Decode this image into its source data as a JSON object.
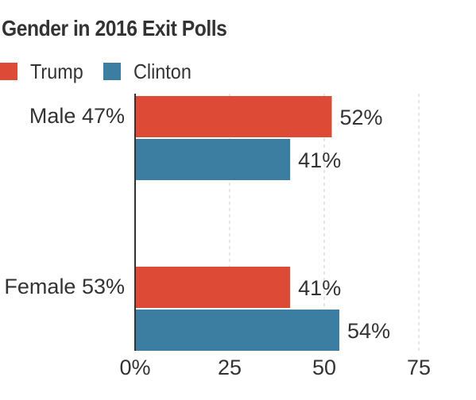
{
  "chart_data": {
    "type": "bar",
    "orientation": "horizontal",
    "title": "Gender in 2016 Exit Polls",
    "categories": [
      "Male 47%",
      "Female 53%"
    ],
    "series": [
      {
        "name": "Trump",
        "color": "#dd4a36",
        "values": [
          52,
          41
        ]
      },
      {
        "name": "Clinton",
        "color": "#3b7ea1",
        "values": [
          41,
          54
        ]
      }
    ],
    "value_suffix": "%",
    "xlim": [
      0,
      80
    ],
    "xticks": [
      0,
      25,
      50,
      75
    ],
    "xtick_labels": [
      "0%",
      "25",
      "50",
      "75"
    ],
    "grid": "vertical-dashed",
    "legend": "top-left"
  }
}
